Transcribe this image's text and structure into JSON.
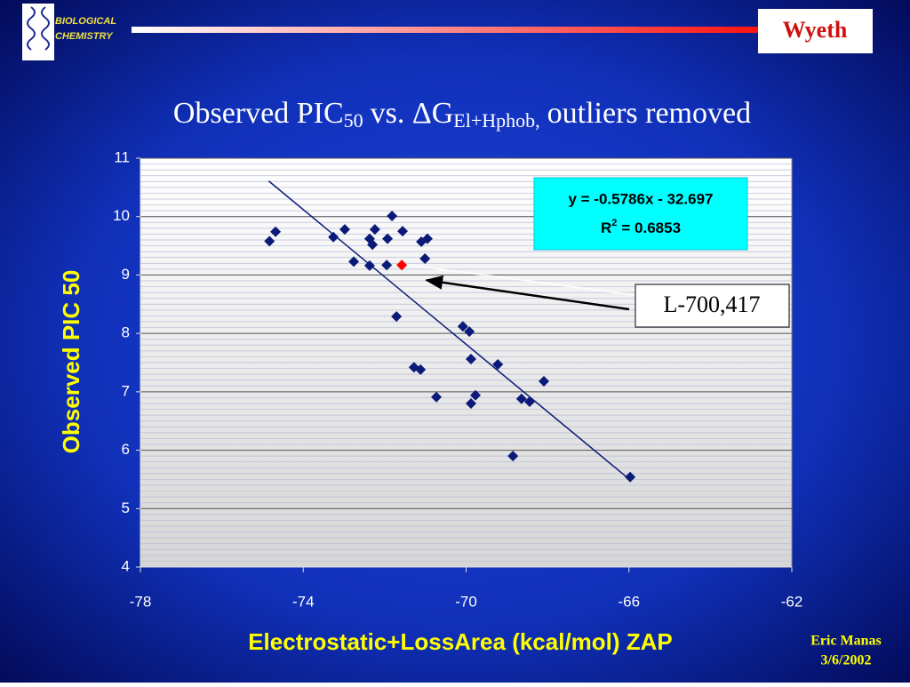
{
  "header": {
    "unit": [
      "BIOLOGICAL",
      "CHEMISTRY"
    ],
    "company": "Wyeth"
  },
  "chart_data": {
    "type": "scatter",
    "title": [
      "Observed PIC",
      "50",
      "vs. ΔG",
      "El+Hphob,",
      "outliers removed"
    ],
    "x_label": "Electrostatic+LossArea (kcal/mol) ZAP",
    "y_label": "Observed PIC 50",
    "xlim": [
      -78,
      -62
    ],
    "xticks": [
      -78,
      -74,
      -70,
      -66,
      -62
    ],
    "ylim": [
      4,
      11
    ],
    "yticks": [
      4,
      5,
      6,
      7,
      8,
      9,
      10,
      11
    ],
    "grid": true,
    "y_minor_step": 0.1,
    "series": [
      {
        "color": "#0b1a78",
        "x": [
          -74.83,
          -74.68,
          -73.26,
          -72.98,
          -72.76,
          -72.37,
          -72.3,
          -72.24,
          -72.37,
          -71.95,
          -71.93,
          -71.82,
          -71.56,
          -71.1,
          -70.95,
          -71.01,
          -71.71,
          -71.28,
          -71.12,
          -70.73,
          -70.08,
          -69.92,
          -69.88,
          -69.22,
          -69.77,
          -69.88,
          -68.64,
          -68.44,
          -68.09,
          -68.85,
          -65.97
        ],
        "y": [
          9.58,
          9.74,
          9.65,
          9.78,
          9.23,
          9.62,
          9.52,
          9.78,
          9.16,
          9.17,
          9.62,
          10.01,
          9.75,
          9.57,
          9.62,
          9.28,
          8.29,
          7.42,
          7.38,
          6.91,
          8.12,
          8.03,
          7.56,
          7.47,
          6.94,
          6.8,
          6.88,
          6.83,
          7.18,
          5.9,
          5.54
        ]
      }
    ],
    "highlight": {
      "x": -71.58,
      "y": 9.17,
      "color": "#ff0000",
      "label": "L-700,417"
    },
    "trendline": {
      "color": "#0b1a78",
      "x": [
        -74.85,
        -65.97
      ],
      "y": [
        10.61,
        5.49
      ],
      "equation": "y = -0.5786x - 32.697",
      "r2": [
        "R",
        "2",
        "= 0.6853"
      ]
    }
  },
  "footer": {
    "author": "Eric Manas",
    "date": "3/6/2002"
  }
}
